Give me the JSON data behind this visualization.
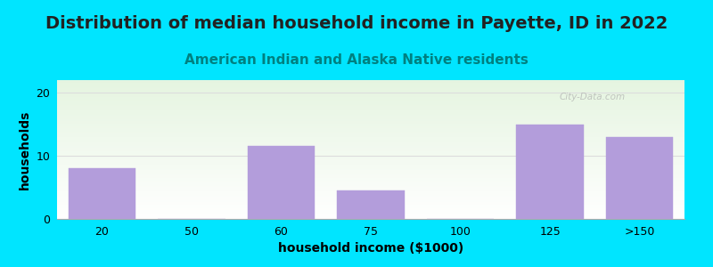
{
  "title": "Distribution of median household income in Payette, ID in 2022",
  "subtitle": "American Indian and Alaska Native residents",
  "xlabel": "household income ($1000)",
  "ylabel": "households",
  "categories": [
    "20",
    "50",
    "60",
    "75",
    "100",
    "125",
    ">150"
  ],
  "values": [
    8,
    0,
    11.5,
    4.5,
    0,
    15,
    13
  ],
  "bar_color": "#b39ddb",
  "background_color": "#00e5ff",
  "ylim": [
    0,
    22
  ],
  "yticks": [
    0,
    10,
    20
  ],
  "grid_color": "#dddddd",
  "title_fontsize": 14,
  "subtitle_fontsize": 11,
  "subtitle_color": "#008080",
  "axis_label_fontsize": 10,
  "tick_fontsize": 9,
  "bar_width": 0.75,
  "watermark": "City-Data.com"
}
